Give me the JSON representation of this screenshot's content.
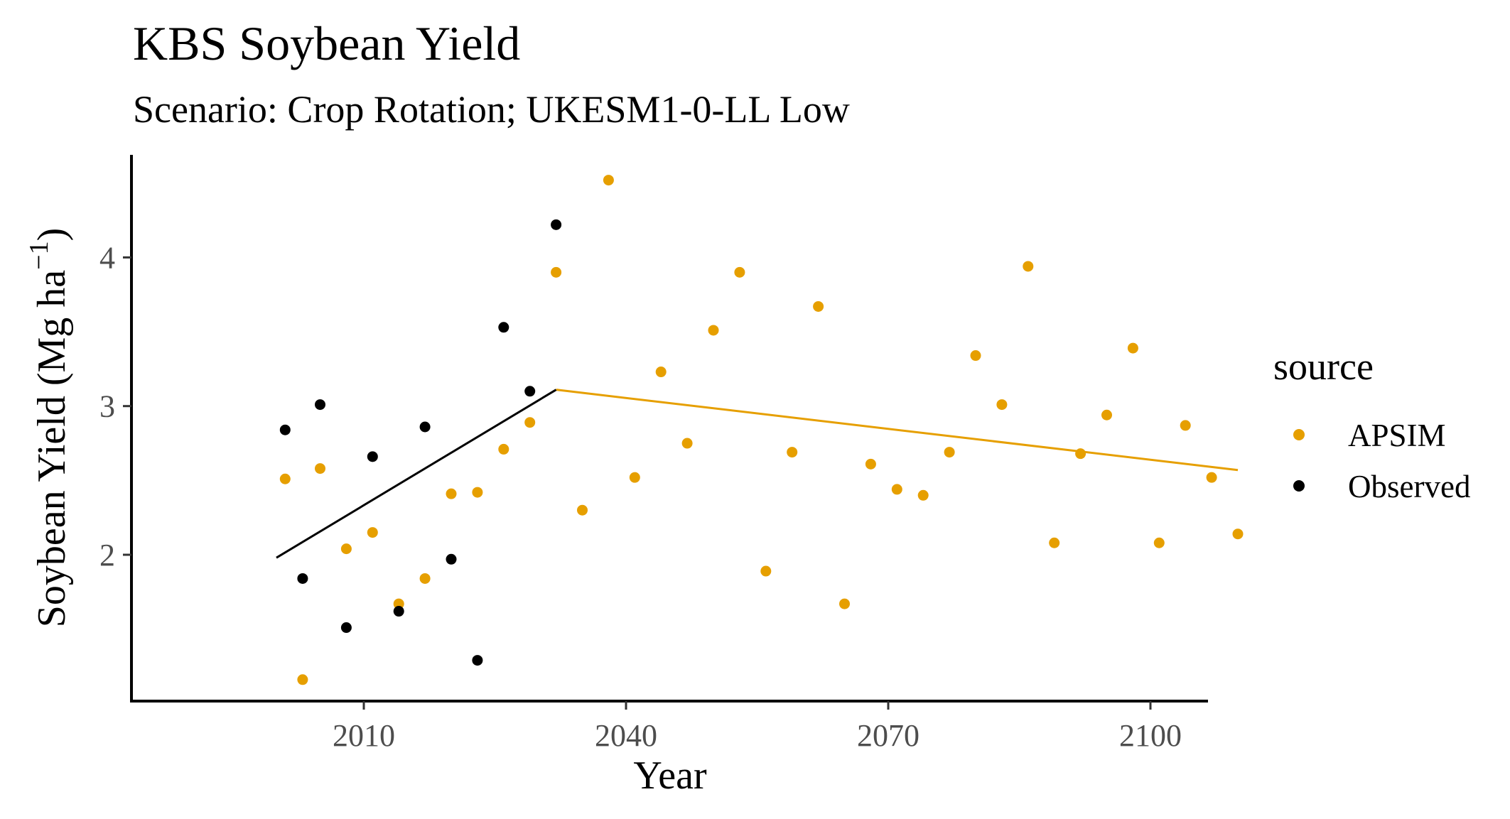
{
  "chart_data": {
    "type": "scatter",
    "title": "KBS Soybean Yield",
    "subtitle": "Scenario: Crop Rotation; UKESM1-0-LL Low",
    "xlabel": "Year",
    "ylabel": "Soybean Yield (Mg ha",
    "ylabel_sup": "−1",
    "ylabel_close": ")",
    "xlim": [
      1995,
      2106
    ],
    "ylim": [
      1.0,
      4.7
    ],
    "x_ticks": [
      2010,
      2040,
      2070,
      2100
    ],
    "y_ticks": [
      2,
      3,
      4
    ],
    "grid": false,
    "legend": {
      "title": "source",
      "position": "right",
      "entries": [
        {
          "label": "APSIM",
          "color": "#E69F00"
        },
        {
          "label": "Observed",
          "color": "#000000"
        }
      ]
    },
    "series": [
      {
        "name": "APSIM",
        "color": "#E69F00",
        "points": [
          [
            2001,
            2.51
          ],
          [
            2003,
            1.16
          ],
          [
            2005,
            2.58
          ],
          [
            2008,
            2.04
          ],
          [
            2011,
            2.15
          ],
          [
            2014,
            1.67
          ],
          [
            2017,
            1.84
          ],
          [
            2020,
            2.41
          ],
          [
            2023,
            2.42
          ],
          [
            2026,
            2.71
          ],
          [
            2029,
            2.89
          ],
          [
            2032,
            3.9
          ],
          [
            2035,
            2.3
          ],
          [
            2038,
            4.52
          ],
          [
            2041,
            2.52
          ],
          [
            2044,
            3.23
          ],
          [
            2047,
            2.75
          ],
          [
            2050,
            3.51
          ],
          [
            2053,
            3.9
          ],
          [
            2056,
            1.89
          ],
          [
            2059,
            2.69
          ],
          [
            2062,
            3.67
          ],
          [
            2065,
            1.67
          ],
          [
            2068,
            2.61
          ],
          [
            2071,
            2.44
          ],
          [
            2074,
            2.4
          ],
          [
            2077,
            2.69
          ],
          [
            2080,
            3.34
          ],
          [
            2083,
            3.01
          ],
          [
            2086,
            3.94
          ],
          [
            2089,
            2.08
          ],
          [
            2092,
            2.68
          ],
          [
            2095,
            2.94
          ],
          [
            2098,
            3.39
          ],
          [
            2101,
            2.08
          ],
          [
            2104,
            2.87
          ],
          [
            2107,
            2.52
          ],
          [
            2110,
            2.14
          ]
        ],
        "trend": [
          [
            2032,
            3.11
          ],
          [
            2110,
            2.57
          ]
        ]
      },
      {
        "name": "Observed",
        "color": "#000000",
        "points": [
          [
            2001,
            2.84
          ],
          [
            2003,
            1.84
          ],
          [
            2005,
            3.01
          ],
          [
            2008,
            1.51
          ],
          [
            2011,
            2.66
          ],
          [
            2014,
            1.62
          ],
          [
            2017,
            2.86
          ],
          [
            2020,
            1.97
          ],
          [
            2023,
            1.29
          ],
          [
            2026,
            3.53
          ],
          [
            2029,
            3.1
          ],
          [
            2032,
            4.22
          ]
        ],
        "trend": [
          [
            2000,
            1.98
          ],
          [
            2032,
            3.11
          ]
        ]
      }
    ]
  }
}
